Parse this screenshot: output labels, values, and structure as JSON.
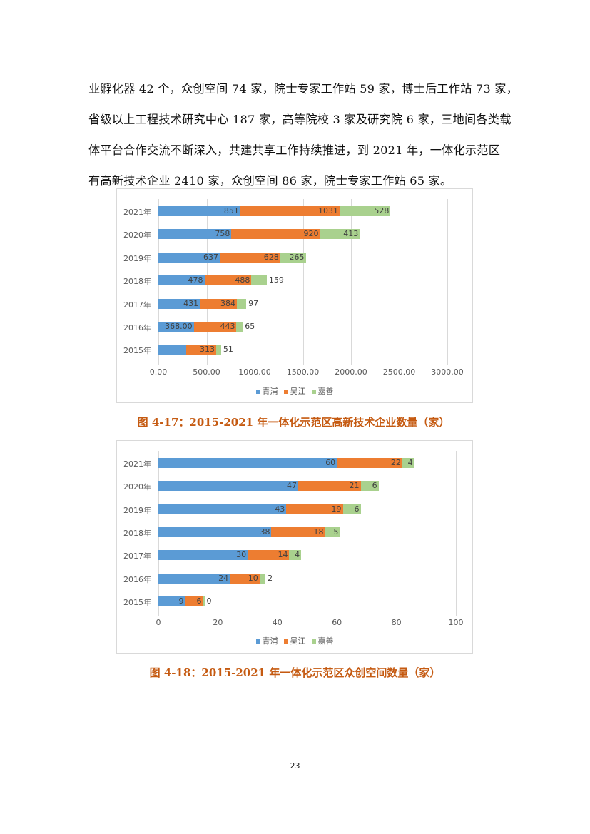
{
  "body_text": {
    "lines": [
      "业孵化器 42 个，众创空间 74 家，院士专家工作站 59 家，博士后工作站 73 家，",
      "省级以上工程技术研究中心 187 家，高等院校 3 家及研究院 6 家，三地间各类载",
      "体平台合作交流不断深入，共建共享工作持续推进，到 2021 年，一体化示范区",
      "有高新技术企业 2410 家，众创空间 86 家，院士专家工作站 65 家。"
    ]
  },
  "colors": {
    "qingpu": "#5b9bd5",
    "wujiang": "#ed7d31",
    "jiashan": "#a9d18e",
    "caption": "#c55a11"
  },
  "legend": [
    "青浦",
    "吴江",
    "嘉善"
  ],
  "figures": [
    {
      "caption": "图 4-17：2015-2021 年一体化示范区高新技术企业数量（家）"
    },
    {
      "caption": "图 4-18：2015-2021 年一体化示范区众创空间数量（家）"
    }
  ],
  "chart_data": [
    {
      "type": "bar",
      "orientation": "horizontal",
      "stacked": true,
      "title": "图 4-17：2015-2021 年一体化示范区高新技术企业数量（家）",
      "xlabel": "",
      "ylabel": "",
      "categories": [
        "2021年",
        "2020年",
        "2019年",
        "2018年",
        "2017年",
        "2016年",
        "2015年"
      ],
      "series": [
        {
          "name": "青浦",
          "values": [
            851,
            758,
            637,
            478,
            431,
            368,
            287
          ],
          "labels": [
            "851",
            "758",
            "637",
            "478",
            "431",
            "368.00",
            "287.00"
          ]
        },
        {
          "name": "吴江",
          "values": [
            1031,
            920,
            628,
            488,
            384,
            443,
            313
          ],
          "labels": [
            "1031",
            "920",
            "628",
            "488",
            "384",
            "443",
            "313"
          ]
        },
        {
          "name": "嘉善",
          "values": [
            528,
            413,
            265,
            159,
            97,
            65,
            51
          ],
          "labels": [
            "528",
            "413",
            "265",
            "159",
            "97",
            "65",
            "51"
          ]
        }
      ],
      "xlim": [
        0,
        3000
      ],
      "xticks": [
        "0.00",
        "500.00",
        "1000.00",
        "1500.00",
        "2000.00",
        "2500.00",
        "3000.00"
      ],
      "grid": true,
      "legend_position": "bottom"
    },
    {
      "type": "bar",
      "orientation": "horizontal",
      "stacked": true,
      "title": "图 4-18：2015-2021 年一体化示范区众创空间数量（家）",
      "xlabel": "",
      "ylabel": "",
      "categories": [
        "2021年",
        "2020年",
        "2019年",
        "2018年",
        "2017年",
        "2016年",
        "2015年"
      ],
      "series": [
        {
          "name": "青浦",
          "values": [
            60,
            47,
            43,
            38,
            30,
            24,
            9
          ],
          "labels": [
            "60",
            "47",
            "43",
            "38",
            "30",
            "24",
            "9"
          ]
        },
        {
          "name": "吴江",
          "values": [
            22,
            21,
            19,
            18,
            14,
            10,
            6
          ],
          "labels": [
            "22",
            "21",
            "19",
            "18",
            "14",
            "10",
            "6"
          ]
        },
        {
          "name": "嘉善",
          "values": [
            4,
            6,
            6,
            5,
            4,
            2,
            0
          ],
          "labels": [
            "4",
            "6",
            "6",
            "5",
            "4",
            "2",
            "0"
          ]
        }
      ],
      "xlim": [
        0,
        100
      ],
      "xticks": [
        "0",
        "20",
        "40",
        "60",
        "80",
        "100"
      ],
      "grid": true,
      "legend_position": "bottom"
    }
  ],
  "page_number": "23"
}
